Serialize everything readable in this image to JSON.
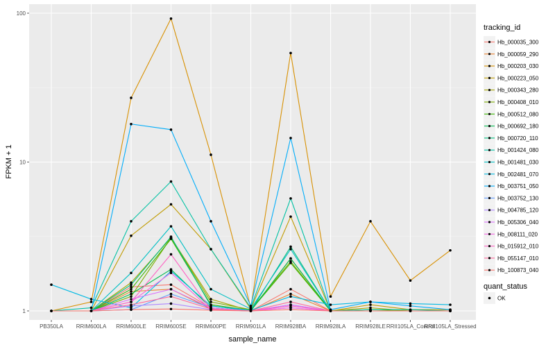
{
  "chart_data": {
    "type": "line",
    "title": "",
    "xlabel": "sample_name",
    "ylabel": "FPKM + 1",
    "yscale": "log10",
    "ylim": [
      1,
      100
    ],
    "yticks": [
      1,
      10,
      100
    ],
    "grid": true,
    "legend_position": "right",
    "categories": [
      "PB350LA",
      "RRIM600LA",
      "RRIM600LE",
      "RRIM600SE",
      "RRIM600PE",
      "RRIM901LA",
      "RRIM928BA",
      "RRIM928LA",
      "RRIM928LE",
      "RRII105LA_Control",
      "RRII105LA_Stressed"
    ],
    "series": [
      {
        "name": "Hb_000035_300",
        "color": "#F8766D",
        "values": [
          1,
          1,
          1.45,
          1.5,
          1.05,
          1,
          1.4,
          1,
          1,
          1,
          1
        ]
      },
      {
        "name": "Hb_000059_290",
        "color": "#EA8331",
        "values": [
          1,
          1,
          1.35,
          1.4,
          1.03,
          1,
          1.3,
          1,
          1,
          1,
          1
        ]
      },
      {
        "name": "Hb_000203_030",
        "color": "#D89000",
        "values": [
          1,
          1.15,
          27,
          92,
          11.2,
          1.05,
          54,
          1.25,
          4,
          1.6,
          2.55
        ]
      },
      {
        "name": "Hb_000223_050",
        "color": "#C09B00",
        "values": [
          1,
          1,
          3.2,
          5.2,
          2.6,
          1.03,
          4.3,
          1,
          1.1,
          1.02,
          1.02
        ]
      },
      {
        "name": "Hb_000343_280",
        "color": "#A3A500",
        "values": [
          1,
          1,
          1.55,
          3.1,
          1.2,
          1,
          2.25,
          1,
          1.05,
          1,
          1
        ]
      },
      {
        "name": "Hb_000408_010",
        "color": "#7CAE00",
        "values": [
          1,
          1,
          1.25,
          3.1,
          1.15,
          1.02,
          2.15,
          1,
          1.02,
          1,
          1
        ]
      },
      {
        "name": "Hb_000512_080",
        "color": "#39B600",
        "values": [
          1,
          1,
          1.4,
          3.05,
          1.1,
          1.01,
          2.1,
          1,
          1,
          1,
          1
        ]
      },
      {
        "name": "Hb_000692_180",
        "color": "#00BB4E",
        "values": [
          1,
          1,
          1.3,
          1.9,
          1.05,
          1,
          2.25,
          1,
          1,
          1,
          1
        ]
      },
      {
        "name": "Hb_000720_110",
        "color": "#00BF7D",
        "values": [
          1,
          1,
          1.5,
          3.15,
          1.08,
          1,
          2.7,
          1,
          1,
          1,
          1
        ]
      },
      {
        "name": "Hb_001424_080",
        "color": "#00C1A3",
        "values": [
          1,
          1.05,
          4,
          7.4,
          2.6,
          1.05,
          5.7,
          1,
          1.02,
          1.02,
          1
        ]
      },
      {
        "name": "Hb_001481_030",
        "color": "#00BFC4",
        "values": [
          1,
          1,
          1.8,
          3.7,
          1.4,
          1.03,
          2.6,
          1,
          1,
          1,
          1
        ]
      },
      {
        "name": "Hb_002481_070",
        "color": "#00B9E3",
        "values": [
          1.5,
          1.2,
          1.05,
          1.85,
          1.08,
          1.01,
          1.25,
          1.1,
          1.15,
          1.12,
          1.1
        ]
      },
      {
        "name": "Hb_003751_050",
        "color": "#00ADFA",
        "values": [
          1,
          1,
          18,
          16.5,
          4,
          1.08,
          14.5,
          1.02,
          1.15,
          1.08,
          1.02
        ]
      },
      {
        "name": "Hb_003752_130",
        "color": "#619CFF",
        "values": [
          1,
          1,
          1.02,
          1.3,
          1.05,
          1,
          1.1,
          1,
          1,
          1,
          1
        ]
      },
      {
        "name": "Hb_004785_120",
        "color": "#AE87FF",
        "values": [
          1,
          1,
          1.08,
          1.12,
          1.02,
          1,
          1.05,
          1,
          1,
          1,
          1
        ]
      },
      {
        "name": "Hb_005306_040",
        "color": "#DB72FB",
        "values": [
          1,
          1,
          1.2,
          1.4,
          1.05,
          1,
          1.1,
          1,
          1,
          1,
          1
        ]
      },
      {
        "name": "Hb_008111_020",
        "color": "#F564E3",
        "values": [
          1,
          1,
          1.15,
          1.8,
          1.02,
          1,
          1.05,
          1,
          1,
          1,
          1
        ]
      },
      {
        "name": "Hb_015912_010",
        "color": "#FF61C3",
        "values": [
          1,
          1,
          1.15,
          2.4,
          1.02,
          1,
          1.08,
          1,
          1,
          1,
          1
        ]
      },
      {
        "name": "Hb_055147_010",
        "color": "#FF699C",
        "values": [
          1,
          1,
          1.1,
          1.25,
          1.03,
          1,
          1.15,
          1,
          1,
          1,
          1
        ]
      },
      {
        "name": "Hb_100873_040",
        "color": "#F8766D",
        "values": [
          1,
          1,
          1.02,
          1.03,
          1.01,
          1,
          1.02,
          1,
          1,
          1,
          1
        ]
      }
    ],
    "legend_title": "tracking_id",
    "legend2": {
      "title": "quant_status",
      "entries": [
        "OK"
      ]
    }
  }
}
